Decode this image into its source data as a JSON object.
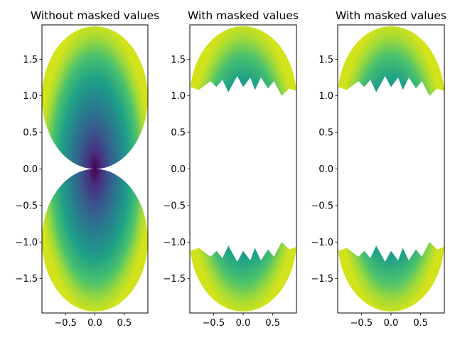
{
  "chart_data": [
    {
      "type": "pcolormesh",
      "title": "Without masked values",
      "xlim": [
        -0.9,
        0.9
      ],
      "ylim": [
        -1.97,
        1.97
      ],
      "xticks": [
        -0.5,
        0.0,
        0.5
      ],
      "xtick_labels": [
        "−0.5",
        "0.0",
        "0.5"
      ],
      "yticks": [
        -1.5,
        -1.0,
        -0.5,
        0.0,
        0.5,
        1.0,
        1.5
      ],
      "ytick_labels": [
        "−1.5",
        "−1.0",
        "−0.5",
        "0.0",
        "0.5",
        "1.0",
        "1.5"
      ],
      "masked": false,
      "colormap": "viridis",
      "grid": false
    },
    {
      "type": "pcolormesh",
      "title": "With masked values",
      "xlim": [
        -0.9,
        0.9
      ],
      "ylim": [
        -1.97,
        1.97
      ],
      "xticks": [
        -0.5,
        0.0,
        0.5
      ],
      "xtick_labels": [
        "−0.5",
        "0.0",
        "0.5"
      ],
      "yticks": [
        -1.5,
        -1.0,
        -0.5,
        0.0,
        0.5,
        1.0,
        1.5
      ],
      "ytick_labels": [
        "−1.5",
        "−1.0",
        "−0.5",
        "0.0",
        "0.5",
        "1.0",
        "1.5"
      ],
      "masked": true,
      "colormap": "viridis",
      "grid": false
    },
    {
      "type": "pcolormesh",
      "title": "With masked values",
      "xlim": [
        -0.9,
        0.9
      ],
      "ylim": [
        -1.97,
        1.97
      ],
      "xticks": [
        -0.5,
        0.0,
        0.5
      ],
      "xtick_labels": [
        "−0.5",
        "0.0",
        "0.5"
      ],
      "yticks": [
        -1.5,
        -1.0,
        -0.5,
        0.0,
        0.5,
        1.0,
        1.5
      ],
      "ytick_labels": [
        "−1.5",
        "−1.0",
        "−0.5",
        "0.0",
        "0.5",
        "1.0",
        "1.5"
      ],
      "masked": true,
      "colormap": "viridis",
      "grid": false
    }
  ]
}
